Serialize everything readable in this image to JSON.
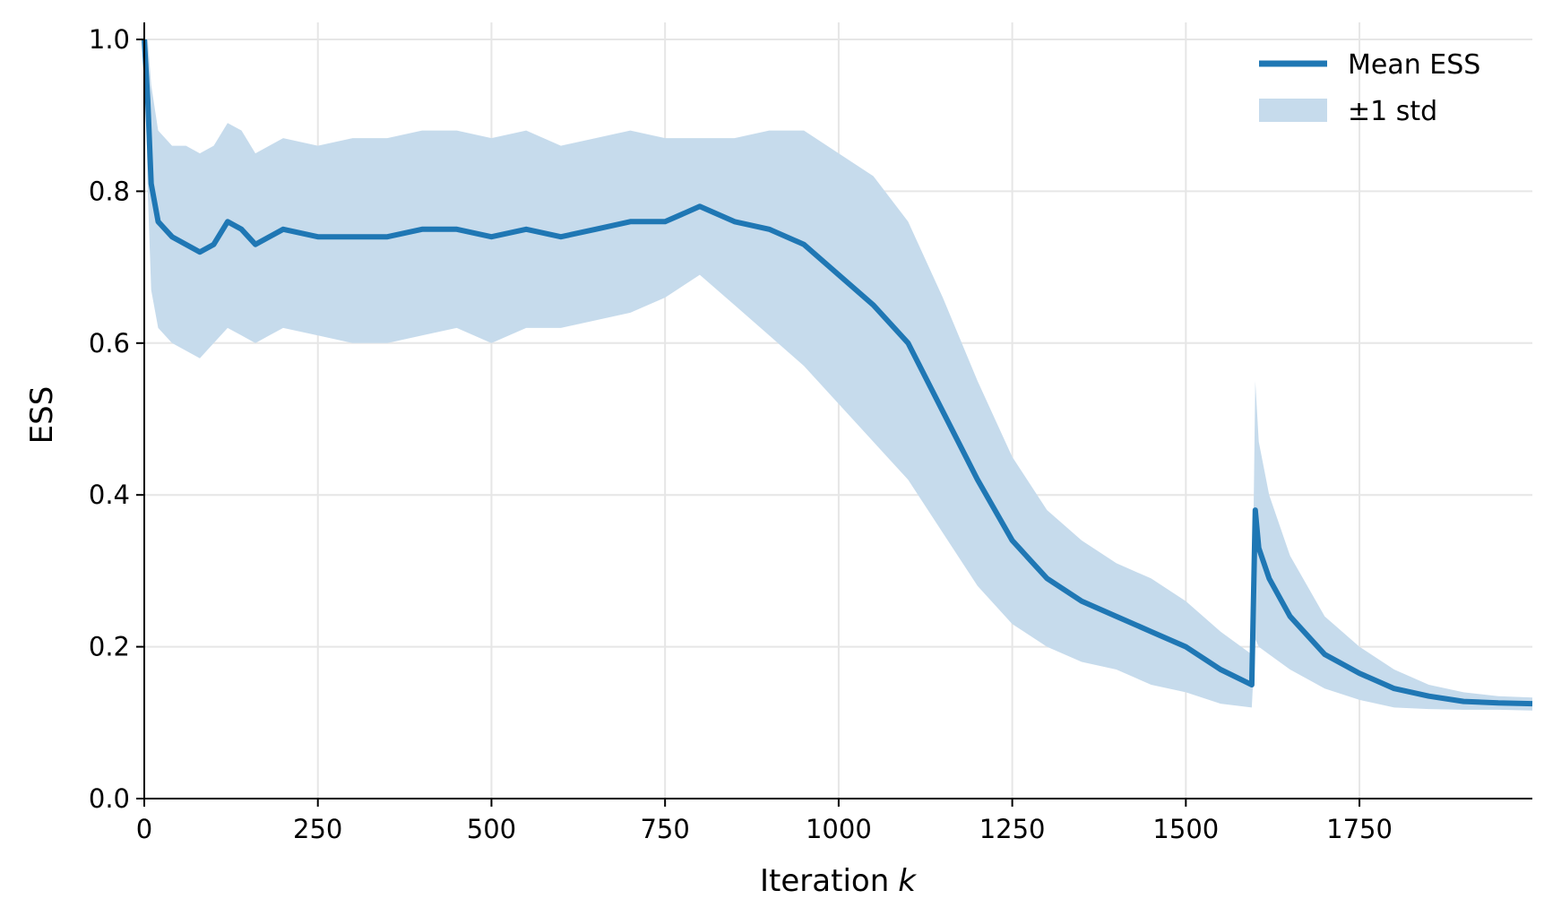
{
  "chart_data": {
    "type": "line",
    "xlabel": "Iteration",
    "xlabel_var": "k",
    "ylabel": "ESS",
    "xlim": [
      0,
      1999
    ],
    "ylim": [
      0.0,
      1.0
    ],
    "grid": true,
    "legend_position": "top-right",
    "x_ticks": [
      0,
      250,
      500,
      750,
      1000,
      1250,
      1500,
      1750
    ],
    "x_tick_labels": [
      "0",
      "250",
      "500",
      "750",
      "1000",
      "1250",
      "1500",
      "1750"
    ],
    "y_ticks": [
      0.0,
      0.2,
      0.4,
      0.6,
      0.8,
      1.0
    ],
    "y_tick_labels": [
      "0.0",
      "0.2",
      "0.4",
      "0.6",
      "0.8",
      "1.0"
    ],
    "colors": {
      "line": "#1f77b4",
      "band": "#c6dbec",
      "grid": "#e6e6e6"
    },
    "series": [
      {
        "name": "Mean ESS",
        "kind": "line",
        "x": [
          0,
          5,
          10,
          20,
          40,
          60,
          80,
          100,
          120,
          140,
          160,
          180,
          200,
          250,
          300,
          350,
          400,
          450,
          500,
          550,
          600,
          650,
          700,
          750,
          800,
          850,
          900,
          950,
          1000,
          1050,
          1100,
          1150,
          1200,
          1250,
          1300,
          1350,
          1400,
          1450,
          1500,
          1550,
          1595,
          1600,
          1605,
          1620,
          1650,
          1700,
          1750,
          1800,
          1850,
          1900,
          1950,
          1999
        ],
        "values": [
          1.0,
          0.92,
          0.81,
          0.76,
          0.74,
          0.73,
          0.72,
          0.73,
          0.76,
          0.75,
          0.73,
          0.74,
          0.75,
          0.74,
          0.74,
          0.74,
          0.75,
          0.75,
          0.74,
          0.75,
          0.74,
          0.75,
          0.76,
          0.76,
          0.78,
          0.76,
          0.75,
          0.73,
          0.69,
          0.65,
          0.6,
          0.51,
          0.42,
          0.34,
          0.29,
          0.26,
          0.24,
          0.22,
          0.2,
          0.17,
          0.15,
          0.38,
          0.33,
          0.29,
          0.24,
          0.19,
          0.165,
          0.145,
          0.135,
          0.128,
          0.126,
          0.125
        ]
      },
      {
        "name": "±1 std",
        "kind": "band",
        "x": [
          0,
          5,
          10,
          20,
          40,
          60,
          80,
          100,
          120,
          140,
          160,
          180,
          200,
          250,
          300,
          350,
          400,
          450,
          500,
          550,
          600,
          650,
          700,
          750,
          800,
          850,
          900,
          950,
          1000,
          1050,
          1100,
          1150,
          1200,
          1250,
          1300,
          1350,
          1400,
          1450,
          1500,
          1550,
          1595,
          1600,
          1605,
          1620,
          1650,
          1700,
          1750,
          1800,
          1850,
          1900,
          1950,
          1999
        ],
        "lower": [
          1.0,
          0.8,
          0.67,
          0.62,
          0.6,
          0.59,
          0.58,
          0.6,
          0.62,
          0.61,
          0.6,
          0.61,
          0.62,
          0.61,
          0.6,
          0.6,
          0.61,
          0.62,
          0.6,
          0.62,
          0.62,
          0.63,
          0.64,
          0.66,
          0.69,
          0.65,
          0.61,
          0.57,
          0.52,
          0.47,
          0.42,
          0.35,
          0.28,
          0.23,
          0.2,
          0.18,
          0.17,
          0.15,
          0.14,
          0.125,
          0.12,
          0.21,
          0.2,
          0.19,
          0.17,
          0.145,
          0.13,
          0.12,
          0.118,
          0.117,
          0.117,
          0.116
        ],
        "upper": [
          1.0,
          1.0,
          0.94,
          0.88,
          0.86,
          0.86,
          0.85,
          0.86,
          0.89,
          0.88,
          0.85,
          0.86,
          0.87,
          0.86,
          0.87,
          0.87,
          0.88,
          0.88,
          0.87,
          0.88,
          0.86,
          0.87,
          0.88,
          0.87,
          0.87,
          0.87,
          0.88,
          0.88,
          0.85,
          0.82,
          0.76,
          0.66,
          0.55,
          0.45,
          0.38,
          0.34,
          0.31,
          0.29,
          0.26,
          0.22,
          0.19,
          0.55,
          0.47,
          0.4,
          0.32,
          0.24,
          0.2,
          0.17,
          0.15,
          0.14,
          0.135,
          0.133
        ]
      }
    ]
  }
}
